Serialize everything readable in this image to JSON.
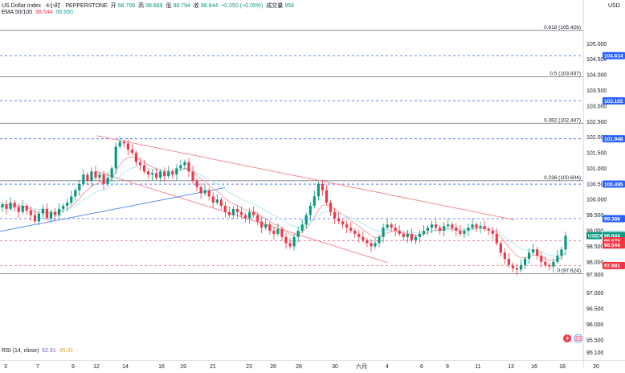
{
  "header": {
    "symbol": "US Dollar Index · 4小时 · PEPPERSTONE",
    "open_label": "开",
    "open": "98.799",
    "high_label": "高",
    "high": "98.889",
    "low_label": "低",
    "low": "98.794",
    "close_label": "收",
    "close": "98.844",
    "change": "+0.050 (+0.05%)",
    "volume_label": "成交量",
    "volume": "958"
  },
  "ema_legend": {
    "name": "EMA 50/100",
    "v1": "98.544",
    "v2": "98.890"
  },
  "rsi_legend": {
    "name": "RSI (14, close)",
    "v1": "62.91",
    "v2": "45.31"
  },
  "currency": "USD",
  "colors": {
    "up": "#089981",
    "down": "#f23645",
    "ema50": "#f7a1a6",
    "ema100": "#b2ebf2",
    "channel": "#f28b93",
    "trend": "#5b8def",
    "level_tag": "#2962ff",
    "usdx_tag": "#089981"
  },
  "chart_data": {
    "type": "candlestick",
    "title": "US Dollar Index",
    "y_unit": "USD",
    "ylim": [
      94.85,
      106.4
    ],
    "x_ticks": [
      "3",
      "7",
      "9",
      "12",
      "14",
      "16",
      "19",
      "21",
      "23",
      "26",
      "28",
      "30",
      "六月",
      "4",
      "6",
      "9",
      "11",
      "13",
      "16",
      "18",
      "20"
    ],
    "y_ticks": [
      "105.000",
      "104.500",
      "104.000",
      "103.500",
      "103.000",
      "102.500",
      "102.000",
      "101.500",
      "101.000",
      "100.500",
      "100.000",
      "99.500",
      "99.000",
      "98.500",
      "98.000",
      "97.600",
      "97.000",
      "96.500",
      "96.000",
      "95.500",
      "95.100"
    ],
    "fib_levels": [
      {
        "label": "0.618 (105.426)",
        "value": 105.426
      },
      {
        "label": "0.5 (103.937)",
        "value": 103.937
      },
      {
        "label": "0.382 (102.447)",
        "value": 102.447
      },
      {
        "label": "0.236 (100.604)",
        "value": 100.604
      },
      {
        "label": "0 (97.624)",
        "value": 97.624
      }
    ],
    "price_tags": [
      {
        "label": "104.614",
        "value": 104.614,
        "kind": "level"
      },
      {
        "label": "103.165",
        "value": 103.165,
        "kind": "level"
      },
      {
        "label": "101.948",
        "value": 101.948,
        "kind": "level"
      },
      {
        "label": "100.495",
        "value": 100.495,
        "kind": "level"
      },
      {
        "label": "99.388",
        "value": 99.388,
        "kind": "level"
      },
      {
        "label": "98.890",
        "value": 98.89,
        "kind": "ema100"
      },
      {
        "label": "98.844",
        "value": 98.844,
        "kind": "last",
        "name": "USDX"
      },
      {
        "label": "98.679",
        "value": 98.679,
        "kind": "down"
      },
      {
        "label": "98.544",
        "value": 98.544,
        "kind": "down"
      },
      {
        "label": "97.881",
        "value": 97.881,
        "kind": "down"
      }
    ],
    "closes": [
      99.85,
      99.7,
      99.9,
      99.75,
      99.6,
      99.8,
      99.65,
      99.5,
      99.3,
      99.55,
      99.7,
      99.4,
      99.6,
      99.5,
      99.7,
      99.8,
      99.9,
      100.1,
      100.3,
      100.5,
      100.8,
      100.6,
      100.9,
      100.7,
      100.8,
      100.5,
      100.7,
      101.0,
      101.7,
      101.85,
      101.8,
      101.6,
      101.5,
      101.2,
      101.1,
      100.9,
      100.8,
      100.85,
      100.7,
      100.9,
      100.75,
      100.9,
      100.8,
      101.0,
      101.1,
      101.2,
      100.9,
      100.6,
      100.4,
      100.2,
      100.3,
      100.1,
      99.9,
      100.0,
      99.8,
      99.6,
      99.5,
      99.7,
      99.6,
      99.5,
      99.4,
      99.6,
      99.5,
      99.3,
      99.1,
      99.2,
      99.0,
      98.9,
      99.05,
      98.8,
      98.6,
      98.5,
      98.8,
      99.0,
      99.2,
      99.5,
      99.8,
      100.1,
      100.5,
      100.3,
      99.9,
      99.6,
      99.4,
      99.3,
      99.2,
      99.1,
      99.0,
      98.9,
      98.8,
      98.7,
      98.6,
      98.5,
      98.6,
      98.8,
      99.1,
      99.2,
      99.1,
      99.0,
      98.9,
      98.8,
      98.9,
      98.7,
      98.8,
      98.9,
      99.0,
      99.1,
      99.2,
      99.1,
      99.0,
      99.15,
      99.2,
      99.1,
      99.0,
      98.9,
      99.0,
      99.1,
      99.2,
      99.1,
      99.15,
      99.05,
      99.0,
      98.9,
      98.6,
      98.3,
      98.1,
      97.9,
      97.8,
      97.75,
      97.9,
      98.1,
      98.3,
      98.4,
      98.2,
      98.0,
      97.9,
      97.85,
      98.0,
      98.2,
      98.4,
      98.844
    ]
  }
}
